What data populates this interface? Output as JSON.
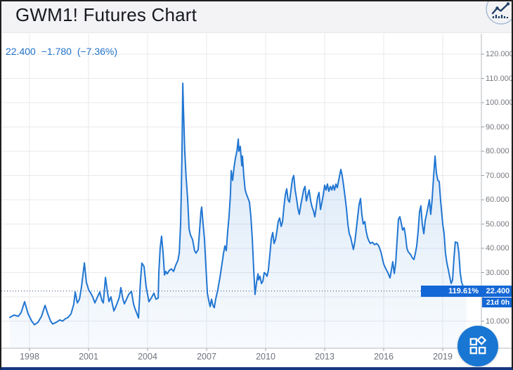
{
  "header": {
    "title": "GWM1! Futures Chart",
    "logo_icon": "line-chart-circle-icon"
  },
  "quote": {
    "last": "22.400",
    "change": "−1.780",
    "change_pct": "(−7.36%)",
    "color": "#2172c8"
  },
  "price_axis": {
    "labels": [
      {
        "text": "120.000",
        "value": 120
      },
      {
        "text": "110.000",
        "value": 110
      },
      {
        "text": "100.000",
        "value": 100
      },
      {
        "text": "90.000",
        "value": 90
      },
      {
        "text": "80.000",
        "value": 80
      },
      {
        "text": "70.000",
        "value": 70
      },
      {
        "text": "60.000",
        "value": 60
      },
      {
        "text": "50.000",
        "value": 50
      },
      {
        "text": "40.000",
        "value": 40
      },
      {
        "text": "30.000",
        "value": 30
      },
      {
        "text": "10.000",
        "value": 10
      }
    ],
    "last_price_label": "22.400",
    "percent_label": "119.61%",
    "countdown_label": "21d 0h",
    "badge_color": "#1467d6"
  },
  "time_axis": {
    "labels": [
      {
        "text": "1998",
        "value": 1998
      },
      {
        "text": "2001",
        "value": 2001
      },
      {
        "text": "2004",
        "value": 2004
      },
      {
        "text": "2007",
        "value": 2007
      },
      {
        "text": "2010",
        "value": 2010
      },
      {
        "text": "2013",
        "value": 2013
      },
      {
        "text": "2016",
        "value": 2016
      },
      {
        "text": "2019",
        "value": 2019
      }
    ]
  },
  "fab": {
    "icon": "widgets-grid-icon",
    "color": "#1976d2"
  },
  "chart_data": {
    "type": "area",
    "title": "GWM1! Futures Chart",
    "series_name": "GWM1!",
    "line_color": "#2176d2",
    "grid": true,
    "x_ticks": [
      1998,
      2001,
      2004,
      2007,
      2010,
      2013,
      2016,
      2019
    ],
    "y_ticks": [
      10,
      20,
      30,
      40,
      50,
      60,
      70,
      80,
      90,
      100,
      110,
      120
    ],
    "xlim": [
      1996.6,
      2021.0
    ],
    "ylim": [
      0,
      128
    ],
    "last_price": 22.4,
    "points": [
      [
        1997.0,
        11.5
      ],
      [
        1997.21,
        12.5
      ],
      [
        1997.43,
        12.0
      ],
      [
        1997.57,
        13.5
      ],
      [
        1997.75,
        18.0
      ],
      [
        1997.93,
        13.0
      ],
      [
        1998.11,
        10.0
      ],
      [
        1998.25,
        8.5
      ],
      [
        1998.43,
        9.5
      ],
      [
        1998.61,
        12.0
      ],
      [
        1998.79,
        16.5
      ],
      [
        1998.93,
        13.0
      ],
      [
        1999.07,
        10.0
      ],
      [
        1999.18,
        8.8
      ],
      [
        1999.36,
        9.5
      ],
      [
        1999.54,
        10.5
      ],
      [
        1999.68,
        10.0
      ],
      [
        1999.82,
        11.0
      ],
      [
        1999.96,
        11.5
      ],
      [
        2000.11,
        13.0
      ],
      [
        2000.25,
        17.0
      ],
      [
        2000.32,
        22.0
      ],
      [
        2000.43,
        17.5
      ],
      [
        2000.54,
        19.0
      ],
      [
        2000.64,
        24.0
      ],
      [
        2000.79,
        34.0
      ],
      [
        2000.89,
        26.0
      ],
      [
        2001.0,
        23.0
      ],
      [
        2001.11,
        21.5
      ],
      [
        2001.21,
        20.0
      ],
      [
        2001.32,
        17.5
      ],
      [
        2001.43,
        19.5
      ],
      [
        2001.57,
        22.0
      ],
      [
        2001.68,
        18.5
      ],
      [
        2001.75,
        17.5
      ],
      [
        2001.86,
        28.0
      ],
      [
        2001.96,
        22.0
      ],
      [
        2002.04,
        18.0
      ],
      [
        2002.14,
        20.0
      ],
      [
        2002.21,
        17.0
      ],
      [
        2002.29,
        14.2
      ],
      [
        2002.39,
        16.0
      ],
      [
        2002.46,
        17.5
      ],
      [
        2002.57,
        20.0
      ],
      [
        2002.64,
        23.8
      ],
      [
        2002.75,
        19.0
      ],
      [
        2002.82,
        17.1
      ],
      [
        2002.93,
        19.0
      ],
      [
        2003.04,
        21.0
      ],
      [
        2003.18,
        22.3
      ],
      [
        2003.29,
        17.0
      ],
      [
        2003.36,
        15.1
      ],
      [
        2003.46,
        13.0
      ],
      [
        2003.54,
        11.3
      ],
      [
        2003.64,
        26.7
      ],
      [
        2003.71,
        33.9
      ],
      [
        2003.82,
        32.5
      ],
      [
        2003.93,
        24.0
      ],
      [
        2004.07,
        18.0
      ],
      [
        2004.18,
        19.4
      ],
      [
        2004.32,
        21.5
      ],
      [
        2004.43,
        19.0
      ],
      [
        2004.54,
        19.5
      ],
      [
        2004.57,
        30.0
      ],
      [
        2004.64,
        40.0
      ],
      [
        2004.71,
        45.0
      ],
      [
        2004.79,
        38.0
      ],
      [
        2004.86,
        29.0
      ],
      [
        2004.93,
        30.5
      ],
      [
        2005.0,
        29.5
      ],
      [
        2005.11,
        31.0
      ],
      [
        2005.21,
        31.5
      ],
      [
        2005.32,
        30.5
      ],
      [
        2005.43,
        33.0
      ],
      [
        2005.54,
        35.0
      ],
      [
        2005.61,
        38.0
      ],
      [
        2005.68,
        50.0
      ],
      [
        2005.71,
        62.0
      ],
      [
        2005.75,
        80.0
      ],
      [
        2005.79,
        108.0
      ],
      [
        2005.82,
        98.0
      ],
      [
        2005.89,
        80.0
      ],
      [
        2005.96,
        69.0
      ],
      [
        2006.04,
        60.0
      ],
      [
        2006.11,
        48.0
      ],
      [
        2006.18,
        45.5
      ],
      [
        2006.29,
        43.5
      ],
      [
        2006.39,
        39.0
      ],
      [
        2006.46,
        38.0
      ],
      [
        2006.57,
        39.5
      ],
      [
        2006.64,
        47.0
      ],
      [
        2006.71,
        55.0
      ],
      [
        2006.75,
        57.0
      ],
      [
        2006.82,
        50.0
      ],
      [
        2006.89,
        44.0
      ],
      [
        2006.96,
        33.0
      ],
      [
        2007.04,
        21.5
      ],
      [
        2007.11,
        18.5
      ],
      [
        2007.18,
        16.0
      ],
      [
        2007.25,
        19.0
      ],
      [
        2007.32,
        16.5
      ],
      [
        2007.39,
        15.5
      ],
      [
        2007.46,
        19.0
      ],
      [
        2007.57,
        23.0
      ],
      [
        2007.68,
        28.0
      ],
      [
        2007.79,
        34.0
      ],
      [
        2007.86,
        38.0
      ],
      [
        2007.93,
        41.0
      ],
      [
        2008.0,
        39.0
      ],
      [
        2008.07,
        47.0
      ],
      [
        2008.14,
        53.0
      ],
      [
        2008.21,
        62.0
      ],
      [
        2008.25,
        72.0
      ],
      [
        2008.32,
        68.0
      ],
      [
        2008.39,
        73.0
      ],
      [
        2008.46,
        77.0
      ],
      [
        2008.54,
        80.0
      ],
      [
        2008.61,
        85.0
      ],
      [
        2008.64,
        80.0
      ],
      [
        2008.71,
        82.0
      ],
      [
        2008.79,
        74.0
      ],
      [
        2008.82,
        78.0
      ],
      [
        2008.89,
        70.0
      ],
      [
        2008.96,
        64.0
      ],
      [
        2009.04,
        62.0
      ],
      [
        2009.11,
        60.5
      ],
      [
        2009.18,
        59.0
      ],
      [
        2009.25,
        53.0
      ],
      [
        2009.32,
        44.0
      ],
      [
        2009.39,
        32.0
      ],
      [
        2009.46,
        21.0
      ],
      [
        2009.54,
        26.0
      ],
      [
        2009.61,
        29.5
      ],
      [
        2009.64,
        27.0
      ],
      [
        2009.71,
        28.5
      ],
      [
        2009.79,
        25.5
      ],
      [
        2009.86,
        26.5
      ],
      [
        2009.93,
        30.0
      ],
      [
        2010.0,
        29.5
      ],
      [
        2010.07,
        28.5
      ],
      [
        2010.14,
        31.0
      ],
      [
        2010.21,
        37.0
      ],
      [
        2010.29,
        44.0
      ],
      [
        2010.36,
        46.5
      ],
      [
        2010.43,
        42.0
      ],
      [
        2010.5,
        43.5
      ],
      [
        2010.57,
        47.0
      ],
      [
        2010.64,
        51.0
      ],
      [
        2010.71,
        52.5
      ],
      [
        2010.79,
        49.0
      ],
      [
        2010.86,
        51.0
      ],
      [
        2010.93,
        57.0
      ],
      [
        2011.0,
        62.0
      ],
      [
        2011.07,
        64.5
      ],
      [
        2011.14,
        60.0
      ],
      [
        2011.21,
        59.0
      ],
      [
        2011.29,
        64.0
      ],
      [
        2011.36,
        68.5
      ],
      [
        2011.43,
        70.0
      ],
      [
        2011.5,
        64.0
      ],
      [
        2011.57,
        60.5
      ],
      [
        2011.64,
        56.5
      ],
      [
        2011.71,
        54.0
      ],
      [
        2011.79,
        58.0
      ],
      [
        2011.86,
        61.0
      ],
      [
        2011.93,
        64.0
      ],
      [
        2012.0,
        65.5
      ],
      [
        2012.07,
        59.5
      ],
      [
        2012.14,
        62.0
      ],
      [
        2012.21,
        64.0
      ],
      [
        2012.29,
        59.5
      ],
      [
        2012.36,
        57.0
      ],
      [
        2012.43,
        55.5
      ],
      [
        2012.5,
        53.0
      ],
      [
        2012.57,
        57.0
      ],
      [
        2012.64,
        61.0
      ],
      [
        2012.71,
        63.0
      ],
      [
        2012.79,
        56.0
      ],
      [
        2012.86,
        59.0
      ],
      [
        2012.93,
        62.0
      ],
      [
        2013.0,
        66.0
      ],
      [
        2013.07,
        64.0
      ],
      [
        2013.14,
        66.5
      ],
      [
        2013.21,
        63.5
      ],
      [
        2013.29,
        65.5
      ],
      [
        2013.36,
        64.0
      ],
      [
        2013.43,
        66.0
      ],
      [
        2013.5,
        64.0
      ],
      [
        2013.57,
        66.5
      ],
      [
        2013.64,
        65.0
      ],
      [
        2013.71,
        68.0
      ],
      [
        2013.82,
        72.5
      ],
      [
        2013.89,
        70.0
      ],
      [
        2013.96,
        66.0
      ],
      [
        2014.04,
        61.0
      ],
      [
        2014.11,
        56.0
      ],
      [
        2014.18,
        50.0
      ],
      [
        2014.25,
        46.0
      ],
      [
        2014.32,
        44.5
      ],
      [
        2014.39,
        42.0
      ],
      [
        2014.46,
        39.5
      ],
      [
        2014.54,
        43.0
      ],
      [
        2014.61,
        48.0
      ],
      [
        2014.68,
        53.0
      ],
      [
        2014.75,
        58.0
      ],
      [
        2014.82,
        60.5
      ],
      [
        2014.89,
        54.0
      ],
      [
        2014.96,
        50.0
      ],
      [
        2015.04,
        51.0
      ],
      [
        2015.11,
        47.0
      ],
      [
        2015.18,
        44.5
      ],
      [
        2015.25,
        43.0
      ],
      [
        2015.32,
        42.0
      ],
      [
        2015.43,
        42.5
      ],
      [
        2015.54,
        41.5
      ],
      [
        2015.64,
        42.0
      ],
      [
        2015.75,
        41.0
      ],
      [
        2015.86,
        38.5
      ],
      [
        2015.93,
        36.0
      ],
      [
        2016.0,
        33.5
      ],
      [
        2016.11,
        31.5
      ],
      [
        2016.21,
        30.0
      ],
      [
        2016.32,
        27.8
      ],
      [
        2016.39,
        31.0
      ],
      [
        2016.46,
        34.5
      ],
      [
        2016.54,
        29.6
      ],
      [
        2016.61,
        34.0
      ],
      [
        2016.68,
        43.0
      ],
      [
        2016.75,
        52.0
      ],
      [
        2016.82,
        53.0
      ],
      [
        2016.89,
        50.5
      ],
      [
        2016.96,
        47.5
      ],
      [
        2017.04,
        48.5
      ],
      [
        2017.11,
        45.0
      ],
      [
        2017.18,
        40.0
      ],
      [
        2017.25,
        38.5
      ],
      [
        2017.36,
        37.5
      ],
      [
        2017.46,
        36.0
      ],
      [
        2017.54,
        35.4
      ],
      [
        2017.61,
        38.0
      ],
      [
        2017.68,
        41.0
      ],
      [
        2017.75,
        47.0
      ],
      [
        2017.82,
        55.0
      ],
      [
        2017.89,
        57.5
      ],
      [
        2017.96,
        50.0
      ],
      [
        2018.04,
        46.0
      ],
      [
        2018.11,
        51.5
      ],
      [
        2018.18,
        54.0
      ],
      [
        2018.25,
        57.0
      ],
      [
        2018.32,
        60.0
      ],
      [
        2018.39,
        54.0
      ],
      [
        2018.46,
        60.0
      ],
      [
        2018.54,
        70.0
      ],
      [
        2018.61,
        78.0
      ],
      [
        2018.68,
        71.0
      ],
      [
        2018.75,
        68.0
      ],
      [
        2018.82,
        67.5
      ],
      [
        2018.89,
        60.0
      ],
      [
        2019.0,
        50.0
      ],
      [
        2019.07,
        46.0
      ],
      [
        2019.14,
        38.0
      ],
      [
        2019.21,
        34.0
      ],
      [
        2019.29,
        31.0
      ],
      [
        2019.36,
        28.0
      ],
      [
        2019.43,
        25.5
      ],
      [
        2019.5,
        27.0
      ],
      [
        2019.57,
        36.0
      ],
      [
        2019.64,
        42.6
      ],
      [
        2019.75,
        42.3
      ],
      [
        2019.82,
        38.0
      ],
      [
        2019.89,
        30.0
      ],
      [
        2019.96,
        26.0
      ],
      [
        2020.04,
        24.3
      ],
      [
        2020.14,
        22.8
      ],
      [
        2020.21,
        22.4
      ]
    ]
  }
}
